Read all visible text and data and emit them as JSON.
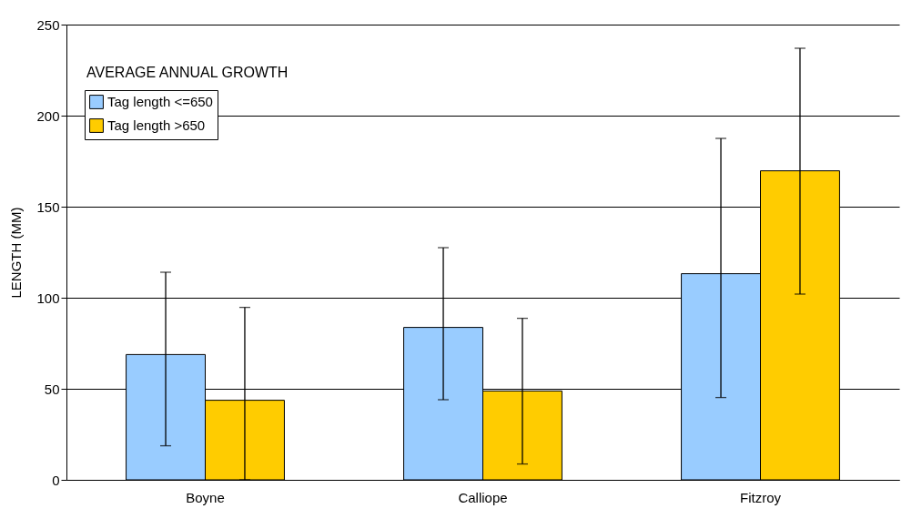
{
  "chart_data": {
    "type": "bar",
    "title": "AVERAGE ANNUAL GROWTH",
    "ylabel": "LENGTH (MM)",
    "categories": [
      "Boyne",
      "Calliope",
      "Fitzroy"
    ],
    "series": [
      {
        "name": "Tag length <=650",
        "color": "#99ccff",
        "values": [
          68.8,
          83.7,
          113.2
        ],
        "errors": [
          [
            18.7,
            114
          ],
          [
            44,
            127.5
          ],
          [
            45.2,
            187.5
          ]
        ]
      },
      {
        "name": "Tag length >650",
        "color": "#ffcc00",
        "values": [
          43.7,
          48.8,
          169.7
        ],
        "errors": [
          [
            0,
            94.7
          ],
          [
            8.7,
            88.7
          ],
          [
            102,
            237
          ]
        ]
      }
    ],
    "ylim": [
      0,
      250
    ],
    "yticks": [
      0,
      50,
      100,
      150,
      200,
      250
    ],
    "grid": "y",
    "legend": "top left"
  }
}
